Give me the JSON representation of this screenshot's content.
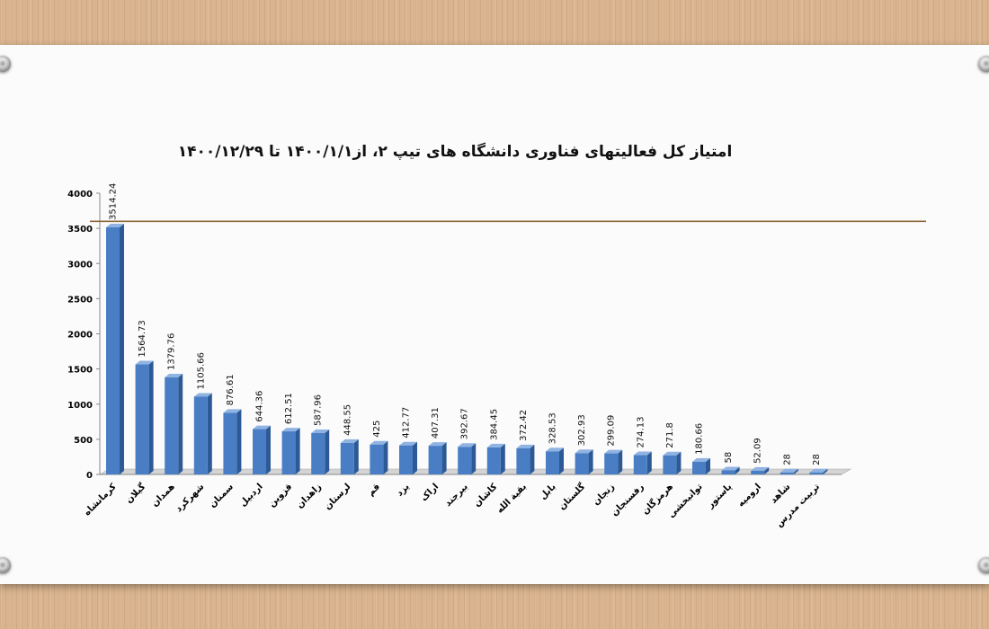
{
  "chart_data": {
    "type": "bar",
    "title": "امتیاز کل فعالیتهای فناوری دانشگاه های تیپ ۲، از۱۴۰۰/۱/۱ تا ۱۴۰۰/۱۲/۲۹",
    "categories": [
      "کرمانشاه",
      "گیلان",
      "همدان",
      "شهرکرد",
      "سمنان",
      "اردبیل",
      "قزوین",
      "زاهدان",
      "لرستان",
      "قم",
      "یزد",
      "اراک",
      "بیرجند",
      "کاشان",
      "بقیة الله",
      "بابل",
      "گلستان",
      "زنجان",
      "رفسنجان",
      "هرمزگان",
      "توانبخشی",
      "پاستور",
      "ارومیه",
      "شاهد",
      "تربیت مدرس"
    ],
    "values": [
      3514.24,
      1564.73,
      1379.76,
      1105.66,
      876.61,
      644.36,
      612.51,
      587.96,
      448.55,
      425,
      412.77,
      407.31,
      392.67,
      384.45,
      372.42,
      328.53,
      302.93,
      299.09,
      274.13,
      271.8,
      180.66,
      58,
      52.09,
      28,
      28
    ],
    "value_labels": [
      "3514.24",
      "1564.73",
      "1379.76",
      "1105.66",
      "876.61",
      "644.36",
      "612.51",
      "587.96",
      "448.55",
      "425",
      "412.77",
      "407.31",
      "392.67",
      "384.45",
      "372.42",
      "328.53",
      "302.93",
      "299.09",
      "274.13",
      "271.8",
      "180.66",
      "58",
      "52.09",
      "28",
      "28"
    ],
    "y_ticks": [
      "0",
      "500",
      "1000",
      "1500",
      "2000",
      "2500",
      "3000",
      "3500",
      "4000"
    ],
    "ylim": [
      0,
      4000
    ],
    "reference_line": 3600,
    "grid": false,
    "xlabel": "",
    "ylabel": "",
    "colors": {
      "bar_front": "#4a7ec4",
      "bar_side": "#2d5a96",
      "bar_top": "#8fb3e2",
      "reference_line": "#8c6a3a"
    }
  }
}
